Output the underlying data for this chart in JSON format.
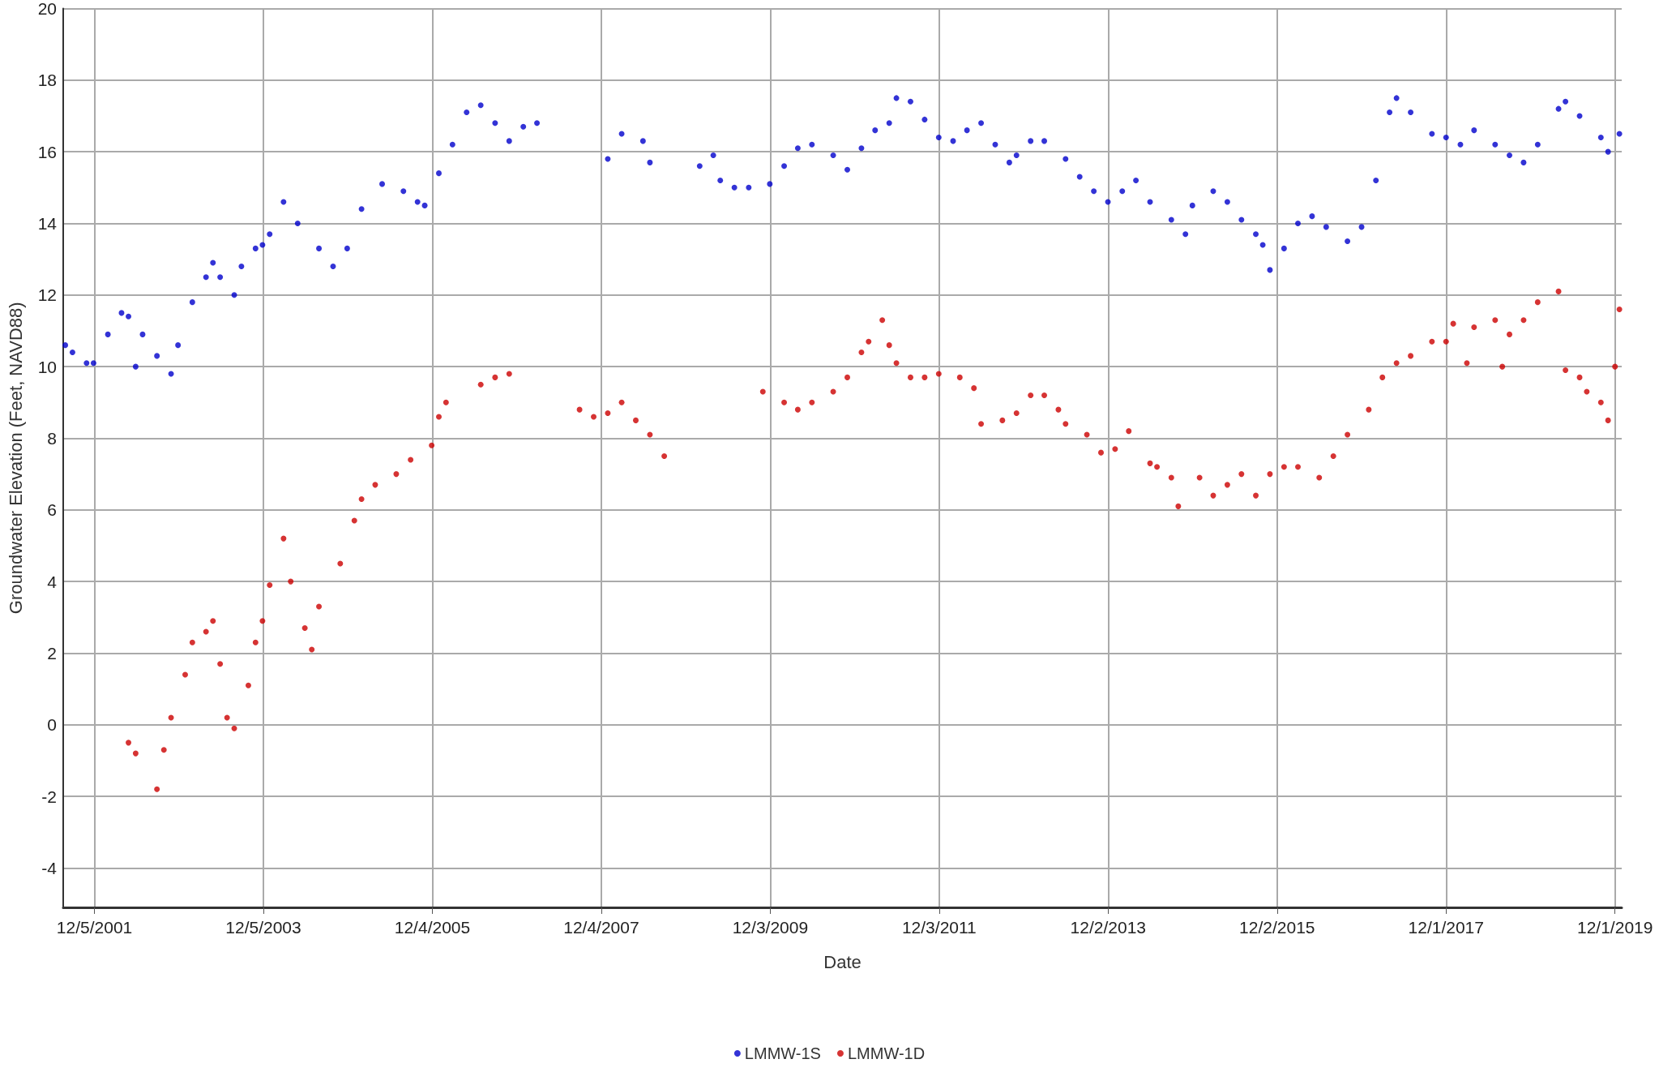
{
  "chart_data": {
    "type": "scatter",
    "xlabel": "Date",
    "ylabel": "Groundwater Elevation (Feet, NAVD88)",
    "xlim": [
      "2001-07-23",
      "2019-12-30"
    ],
    "xticks": [
      {
        "value": "2001-12-05",
        "label": "12/5/2001"
      },
      {
        "value": "2003-12-05",
        "label": "12/5/2003"
      },
      {
        "value": "2005-12-04",
        "label": "12/4/2005"
      },
      {
        "value": "2007-12-04",
        "label": "12/4/2007"
      },
      {
        "value": "2009-12-03",
        "label": "12/3/2009"
      },
      {
        "value": "2011-12-03",
        "label": "12/3/2011"
      },
      {
        "value": "2013-12-02",
        "label": "12/2/2013"
      },
      {
        "value": "2015-12-02",
        "label": "12/2/2015"
      },
      {
        "value": "2017-12-01",
        "label": "12/1/2017"
      },
      {
        "value": "2019-12-01",
        "label": "12/1/2019"
      }
    ],
    "ylim": [
      -5.1,
      20
    ],
    "yticks": [
      -4,
      -2,
      0,
      2,
      4,
      6,
      8,
      10,
      12,
      14,
      16,
      18,
      20
    ],
    "grid": true,
    "legend": "bottom",
    "marker": "circle",
    "series": [
      {
        "name": "LMMW-1S",
        "color": "#0000cc",
        "x": [
          "2001-08",
          "2001-09",
          "2001-11",
          "2001-12",
          "2002-02",
          "2002-04",
          "2002-05",
          "2002-06",
          "2002-07",
          "2002-09",
          "2002-11",
          "2002-12",
          "2003-02",
          "2003-04",
          "2003-05",
          "2003-06",
          "2003-08",
          "2003-09",
          "2003-11",
          "2003-12",
          "2004-01",
          "2004-03",
          "2004-05",
          "2004-08",
          "2004-10",
          "2004-12",
          "2005-02",
          "2005-05",
          "2005-08",
          "2005-10",
          "2005-11",
          "2006-01",
          "2006-03",
          "2006-05",
          "2006-07",
          "2006-09",
          "2006-11",
          "2007-01",
          "2007-03",
          "2008-01",
          "2008-03",
          "2008-06",
          "2008-07",
          "2009-02",
          "2009-04",
          "2009-05",
          "2009-07",
          "2009-09",
          "2009-12",
          "2010-02",
          "2010-04",
          "2010-06",
          "2010-09",
          "2010-11",
          "2011-01",
          "2011-03",
          "2011-05",
          "2011-06",
          "2011-08",
          "2011-10",
          "2011-12",
          "2012-02",
          "2012-04",
          "2012-06",
          "2012-08",
          "2012-10",
          "2012-11",
          "2013-01",
          "2013-03",
          "2013-06",
          "2013-08",
          "2013-10",
          "2013-12",
          "2014-02",
          "2014-04",
          "2014-06",
          "2014-09",
          "2014-11",
          "2014-12",
          "2015-03",
          "2015-05",
          "2015-07",
          "2015-09",
          "2015-10",
          "2015-11",
          "2016-01",
          "2016-03",
          "2016-05",
          "2016-07",
          "2016-10",
          "2016-12",
          "2017-02",
          "2017-04",
          "2017-05",
          "2017-07",
          "2017-10",
          "2017-12",
          "2018-02",
          "2018-04",
          "2018-07",
          "2018-09",
          "2018-11",
          "2019-01",
          "2019-04",
          "2019-05",
          "2019-07",
          "2019-10",
          "2019-11",
          "2019-12-20"
        ],
        "values": [
          10.6,
          10.4,
          10.1,
          10.1,
          10.9,
          11.5,
          11.4,
          10.0,
          10.9,
          10.3,
          9.8,
          10.6,
          11.8,
          12.5,
          12.9,
          12.5,
          12.0,
          12.8,
          13.3,
          13.4,
          13.7,
          14.6,
          14.0,
          13.3,
          12.8,
          13.3,
          14.4,
          15.1,
          14.9,
          14.6,
          14.5,
          15.4,
          16.2,
          17.1,
          17.3,
          16.8,
          16.3,
          16.7,
          16.8,
          15.8,
          16.5,
          16.3,
          15.7,
          15.6,
          15.9,
          15.2,
          15.0,
          15.0,
          15.1,
          15.6,
          16.1,
          16.2,
          15.9,
          15.5,
          16.1,
          16.6,
          16.8,
          17.5,
          17.4,
          16.9,
          16.4,
          16.3,
          16.6,
          16.8,
          16.2,
          15.7,
          15.9,
          16.3,
          16.3,
          15.8,
          15.3,
          14.9,
          14.6,
          14.9,
          15.2,
          14.6,
          14.1,
          13.7,
          14.5,
          14.9,
          14.6,
          14.1,
          13.7,
          13.4,
          12.7,
          13.3,
          14.0,
          14.2,
          13.9,
          13.5,
          13.9,
          15.2,
          17.1,
          17.5,
          17.1,
          16.5,
          16.4,
          16.2,
          16.6,
          16.2,
          15.9,
          15.7,
          16.2,
          17.2,
          17.4,
          17.0,
          16.4,
          16.0,
          16.5
        ]
      },
      {
        "name": "LMMW-1D",
        "color": "#cc0000",
        "x": [
          "2002-05",
          "2002-06",
          "2002-09",
          "2002-10",
          "2002-11",
          "2003-01",
          "2003-02",
          "2003-04",
          "2003-05",
          "2003-06",
          "2003-07",
          "2003-08",
          "2003-10",
          "2003-11",
          "2003-12",
          "2004-01",
          "2004-03",
          "2004-04",
          "2004-06",
          "2004-07",
          "2004-08",
          "2004-11",
          "2005-01",
          "2005-02",
          "2005-04",
          "2005-07",
          "2005-09",
          "2005-12",
          "2006-01",
          "2006-02",
          "2006-07",
          "2006-09",
          "2006-11",
          "2007-09",
          "2007-11",
          "2008-01",
          "2008-03",
          "2008-05",
          "2008-07",
          "2008-09",
          "2009-11",
          "2010-02",
          "2010-04",
          "2010-06",
          "2010-09",
          "2010-11",
          "2011-01",
          "2011-02",
          "2011-04",
          "2011-05",
          "2011-06",
          "2011-08",
          "2011-10",
          "2011-12",
          "2012-03",
          "2012-05",
          "2012-06",
          "2012-09",
          "2012-11",
          "2013-01",
          "2013-03",
          "2013-05",
          "2013-06",
          "2013-09",
          "2013-11",
          "2014-01",
          "2014-03",
          "2014-06",
          "2014-07",
          "2014-09",
          "2014-10",
          "2015-01",
          "2015-03",
          "2015-05",
          "2015-07",
          "2015-09",
          "2015-11",
          "2016-01",
          "2016-03",
          "2016-06",
          "2016-08",
          "2016-10",
          "2017-01",
          "2017-03",
          "2017-05",
          "2017-07",
          "2017-10",
          "2017-12",
          "2018-01",
          "2018-03",
          "2018-04",
          "2018-07",
          "2018-08",
          "2018-09",
          "2018-11",
          "2019-01",
          "2019-04",
          "2019-05",
          "2019-07",
          "2019-08",
          "2019-10",
          "2019-11",
          "2019-12",
          "2019-12-20"
        ],
        "values": [
          -0.5,
          -0.8,
          -1.8,
          -0.7,
          0.2,
          1.4,
          2.3,
          2.6,
          2.9,
          1.7,
          0.2,
          -0.1,
          1.1,
          2.3,
          2.9,
          3.9,
          5.2,
          4.0,
          2.7,
          2.1,
          3.3,
          4.5,
          5.7,
          6.3,
          6.7,
          7.0,
          7.4,
          7.8,
          8.6,
          9.0,
          9.5,
          9.7,
          9.8,
          8.8,
          8.6,
          8.7,
          9.0,
          8.5,
          8.1,
          7.5,
          9.3,
          9.0,
          8.8,
          9.0,
          9.3,
          9.7,
          10.4,
          10.7,
          11.3,
          10.6,
          10.1,
          9.7,
          9.7,
          9.8,
          9.7,
          9.4,
          8.4,
          8.5,
          8.7,
          9.2,
          9.2,
          8.8,
          8.4,
          8.1,
          7.6,
          7.7,
          8.2,
          7.3,
          7.2,
          6.9,
          6.1,
          6.9,
          6.4,
          6.7,
          7.0,
          6.4,
          7.0,
          7.2,
          7.2,
          6.9,
          7.5,
          8.1,
          8.8,
          9.7,
          10.1,
          10.3,
          10.7,
          10.7,
          11.2,
          10.1,
          11.1,
          11.3,
          10.0,
          10.9,
          11.3,
          11.8,
          12.1,
          9.9,
          9.7,
          9.3,
          9.0,
          8.5,
          10.0,
          11.6
        ]
      }
    ]
  }
}
